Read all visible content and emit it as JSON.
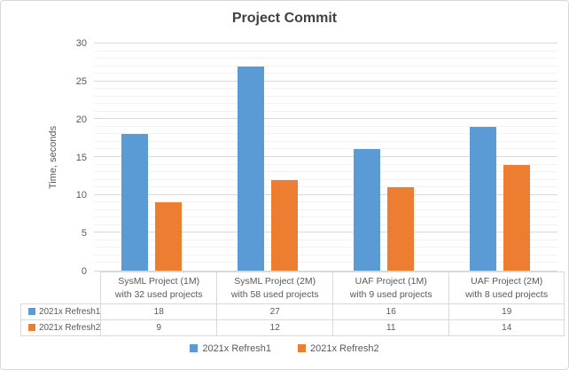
{
  "chart_data": {
    "type": "bar",
    "title": "Project Commit",
    "xlabel": "",
    "ylabel": "Time, seconds",
    "ylim": [
      0,
      30
    ],
    "yticks": [
      0,
      5,
      10,
      15,
      20,
      25,
      30
    ],
    "ytick_step_major": 5,
    "ytick_step_minor": 1,
    "grid": true,
    "legend_position": "bottom",
    "data_table": true,
    "categories": [
      [
        "SysML Project (1M)",
        "with 32 used projects"
      ],
      [
        "SysML Project (2M)",
        "with 58 used projects"
      ],
      [
        "UAF Project (1M)",
        "with 9 used projects"
      ],
      [
        "UAF Project (2M)",
        "with 8 used projects"
      ]
    ],
    "series": [
      {
        "name": "2021x Refresh1",
        "color": "#5B9BD5",
        "values": [
          18,
          27,
          16,
          19
        ]
      },
      {
        "name": "2021x Refresh2",
        "color": "#ED7D31",
        "values": [
          9,
          12,
          11,
          14
        ]
      }
    ]
  }
}
